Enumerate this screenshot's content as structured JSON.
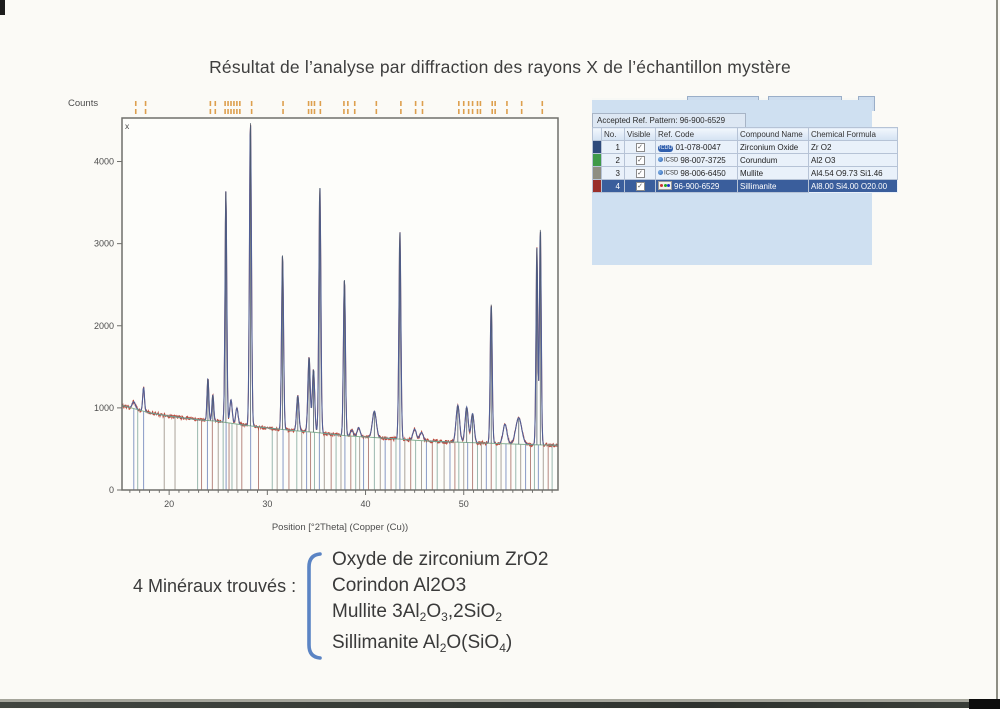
{
  "title": "Résultat de l’analyse par diffraction des rayons X de l’échantillon mystère",
  "chart_data": {
    "type": "line",
    "subtype": "xrd-pattern",
    "ylabel": "Counts",
    "xlabel": "Position [°2Theta] (Copper (Cu))",
    "corner_label": "x",
    "xlim": [
      15.2,
      59.6
    ],
    "ylim": [
      0,
      4530
    ],
    "xticks": [
      20,
      30,
      40,
      50
    ],
    "yticks": [
      0,
      1000,
      2000,
      3000,
      4000
    ],
    "grid": false,
    "legend": "none",
    "series": [
      {
        "name": "measured-pattern",
        "color": "#bc4a3c"
      },
      {
        "name": "calculated-profile",
        "color": "#4a5f9a"
      },
      {
        "name": "fitted-background",
        "color": "#79a98a"
      }
    ],
    "background_points": [
      [
        15.2,
        1030
      ],
      [
        18,
        940
      ],
      [
        20,
        900
      ],
      [
        23,
        855
      ],
      [
        25,
        835
      ],
      [
        27,
        800
      ],
      [
        30,
        755
      ],
      [
        33,
        720
      ],
      [
        35,
        700
      ],
      [
        38,
        660
      ],
      [
        40,
        645
      ],
      [
        43,
        625
      ],
      [
        45,
        605
      ],
      [
        47,
        592
      ],
      [
        50,
        580
      ],
      [
        53,
        568
      ],
      [
        55,
        560
      ],
      [
        57,
        552
      ],
      [
        59.6,
        545
      ]
    ],
    "peaks": [
      [
        16.4,
        1075,
        0.16
      ],
      [
        17.4,
        1250,
        0.09
      ],
      [
        23.95,
        1360,
        0.09
      ],
      [
        24.45,
        1160,
        0.09
      ],
      [
        25.78,
        3640,
        0.09
      ],
      [
        26.3,
        1100,
        0.12
      ],
      [
        26.9,
        1000,
        0.12
      ],
      [
        28.28,
        4480,
        0.1
      ],
      [
        31.55,
        2870,
        0.1
      ],
      [
        33.1,
        1150,
        0.12
      ],
      [
        34.25,
        1620,
        0.12
      ],
      [
        34.7,
        1470,
        0.12
      ],
      [
        35.35,
        3690,
        0.1
      ],
      [
        37.85,
        2570,
        0.1
      ],
      [
        38.6,
        730,
        0.15
      ],
      [
        39.3,
        760,
        0.15
      ],
      [
        40.9,
        960,
        0.2
      ],
      [
        43.5,
        3140,
        0.1
      ],
      [
        45.0,
        740,
        0.18
      ],
      [
        45.7,
        700,
        0.18
      ],
      [
        49.4,
        1030,
        0.18
      ],
      [
        50.3,
        1010,
        0.16
      ],
      [
        50.9,
        930,
        0.16
      ],
      [
        52.8,
        2270,
        0.1
      ],
      [
        54.2,
        800,
        0.2
      ],
      [
        55.6,
        880,
        0.3
      ],
      [
        57.45,
        2950,
        0.09
      ],
      [
        57.8,
        3180,
        0.09
      ]
    ],
    "top_tick_positions": [
      16.6,
      17.6,
      24.2,
      24.7,
      25.7,
      26.0,
      26.3,
      26.6,
      26.9,
      27.2,
      28.4,
      31.6,
      34.2,
      34.5,
      34.8,
      35.4,
      37.8,
      38.2,
      38.9,
      41.1,
      43.6,
      45.1,
      45.8,
      49.5,
      50.0,
      50.5,
      50.9,
      51.4,
      51.7,
      52.9,
      53.2,
      54.4,
      55.9,
      58.0
    ],
    "top_tick_color": "#dd9f4e",
    "ref_line_colors": {
      "b": "#7b8fc0",
      "t": "#8fb0a6",
      "g": "#a39a90",
      "r": "#b07a72"
    },
    "ref_lines": [
      [
        16.4,
        "b"
      ],
      [
        16.8,
        "t"
      ],
      [
        17.4,
        "b"
      ],
      [
        19.5,
        "g"
      ],
      [
        20.6,
        "g"
      ],
      [
        22.9,
        "t"
      ],
      [
        23.3,
        "r"
      ],
      [
        23.9,
        "b"
      ],
      [
        24.4,
        "r"
      ],
      [
        25.0,
        "g"
      ],
      [
        25.5,
        "t"
      ],
      [
        25.8,
        "b"
      ],
      [
        26.1,
        "r"
      ],
      [
        26.4,
        "t"
      ],
      [
        26.9,
        "g"
      ],
      [
        27.4,
        "r"
      ],
      [
        28.3,
        "b"
      ],
      [
        29.1,
        "r"
      ],
      [
        30.5,
        "t"
      ],
      [
        31.0,
        "g"
      ],
      [
        31.6,
        "b"
      ],
      [
        32.2,
        "r"
      ],
      [
        33.0,
        "t"
      ],
      [
        33.5,
        "g"
      ],
      [
        34.0,
        "b"
      ],
      [
        34.4,
        "r"
      ],
      [
        34.8,
        "t"
      ],
      [
        35.3,
        "b"
      ],
      [
        35.8,
        "g"
      ],
      [
        36.5,
        "r"
      ],
      [
        37.0,
        "t"
      ],
      [
        37.5,
        "g"
      ],
      [
        37.9,
        "b"
      ],
      [
        38.5,
        "r"
      ],
      [
        39.0,
        "t"
      ],
      [
        39.4,
        "g"
      ],
      [
        39.8,
        "b"
      ],
      [
        40.3,
        "r"
      ],
      [
        40.9,
        "t"
      ],
      [
        41.5,
        "g"
      ],
      [
        42.0,
        "b"
      ],
      [
        42.6,
        "r"
      ],
      [
        43.1,
        "t"
      ],
      [
        43.5,
        "b"
      ],
      [
        44.0,
        "g"
      ],
      [
        44.6,
        "r"
      ],
      [
        45.1,
        "t"
      ],
      [
        45.7,
        "g"
      ],
      [
        46.2,
        "b"
      ],
      [
        46.8,
        "r"
      ],
      [
        47.3,
        "t"
      ],
      [
        48.0,
        "g"
      ],
      [
        48.6,
        "b"
      ],
      [
        49.1,
        "r"
      ],
      [
        49.5,
        "t"
      ],
      [
        50.0,
        "g"
      ],
      [
        50.4,
        "b"
      ],
      [
        50.9,
        "r"
      ],
      [
        51.4,
        "t"
      ],
      [
        51.8,
        "g"
      ],
      [
        52.3,
        "b"
      ],
      [
        52.8,
        "r"
      ],
      [
        53.3,
        "t"
      ],
      [
        53.8,
        "g"
      ],
      [
        54.3,
        "b"
      ],
      [
        54.8,
        "r"
      ],
      [
        55.3,
        "t"
      ],
      [
        55.8,
        "g"
      ],
      [
        56.3,
        "b"
      ],
      [
        56.8,
        "r"
      ],
      [
        57.2,
        "t"
      ],
      [
        57.6,
        "b"
      ],
      [
        58.1,
        "g"
      ],
      [
        58.6,
        "r"
      ],
      [
        59.0,
        "t"
      ]
    ]
  },
  "pattern_panel": {
    "accepted_label": "Accepted Ref. Pattern: 96-900-6529",
    "columns": [
      "No.",
      "Visible",
      "Ref. Code",
      "Compound Name",
      "Chemical Formula"
    ],
    "rows": [
      {
        "no": "1",
        "visible": true,
        "source": "ICDD",
        "ref_code": "01-078-0047",
        "compound": "Zirconium Oxide",
        "formula": "Zr O2",
        "chip": "#2e4a7a",
        "selected": false
      },
      {
        "no": "2",
        "visible": true,
        "source": "ICSD",
        "ref_code": "98-007-3725",
        "compound": "Corundum",
        "formula": "Al2 O3",
        "chip": "#3f9a48",
        "selected": false
      },
      {
        "no": "3",
        "visible": true,
        "source": "ICSD",
        "ref_code": "98-006-6450",
        "compound": "Mullite",
        "formula": "Al4.54 O9.73 Si1.46",
        "chip": "#8e8e82",
        "selected": false
      },
      {
        "no": "4",
        "visible": true,
        "source": "COD",
        "ref_code": "96-900-6529",
        "compound": "Sillimanite",
        "formula": "Al8.00 Si4.00 O20.00",
        "chip": "#9a2f2a",
        "selected": true
      }
    ]
  },
  "minerals": {
    "label": "4 Minéraux trouvés :",
    "items": [
      {
        "parts": [
          {
            "t": "Oxyde de zirconium ZrO2"
          }
        ]
      },
      {
        "parts": [
          {
            "t": "Corindon Al2O3"
          }
        ]
      },
      {
        "parts": [
          {
            "t": "Mullite 3Al"
          },
          {
            "t": "2",
            "sub": true
          },
          {
            "t": "O"
          },
          {
            "t": "3",
            "sub": true
          },
          {
            "t": ",2SiO"
          },
          {
            "t": "2",
            "sub": true
          }
        ]
      },
      {
        "parts": [
          {
            "t": "Sillimanite Al"
          },
          {
            "t": "2",
            "sub": true
          },
          {
            "t": "O(SiO"
          },
          {
            "t": "4",
            "sub": true
          },
          {
            "t": ")"
          }
        ]
      }
    ]
  }
}
